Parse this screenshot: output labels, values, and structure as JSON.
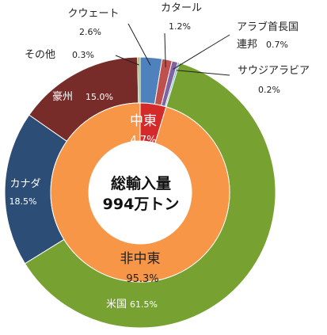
{
  "chart_data": {
    "type": "pie",
    "variant": "nested-donut",
    "center_label": [
      "総輸入量",
      "994万トン"
    ],
    "inner_ring": [
      {
        "name": "中東",
        "value": 4.7,
        "label": "中東",
        "pct": "4.7%",
        "color": "#d42a2a"
      },
      {
        "name": "非中東",
        "value": 95.3,
        "label": "非中東",
        "pct": "95.3%",
        "color": "#f79646"
      }
    ],
    "outer_ring": [
      {
        "name": "クウェート",
        "value": 2.6,
        "label": "クウェート",
        "pct": "2.6%",
        "color": "#4f81bd"
      },
      {
        "name": "カタール",
        "value": 1.2,
        "label": "カタール",
        "pct": "1.2%",
        "color": "#c0504d"
      },
      {
        "name": "アラブ首長国連邦",
        "value": 0.7,
        "label": "アラブ首長国",
        "label2": "連邦",
        "pct": "0.7%",
        "color": "#8064a2"
      },
      {
        "name": "サウジアラビア",
        "value": 0.2,
        "label": "サウジアラビア",
        "pct": "0.2%",
        "color": "#4bacc6"
      },
      {
        "name": "米国",
        "value": 61.5,
        "label": "米国",
        "pct": "61.5%",
        "color": "#77a231"
      },
      {
        "name": "カナダ",
        "value": 18.5,
        "label": "カナダ",
        "pct": "18.5%",
        "color": "#2c4d75"
      },
      {
        "name": "豪州",
        "value": 15.0,
        "label": "豪州",
        "pct": "15.0%",
        "color": "#772c2a"
      },
      {
        "name": "その他",
        "value": 0.3,
        "label": "その他",
        "pct": "0.3%",
        "color": "#9bbb59"
      }
    ]
  }
}
